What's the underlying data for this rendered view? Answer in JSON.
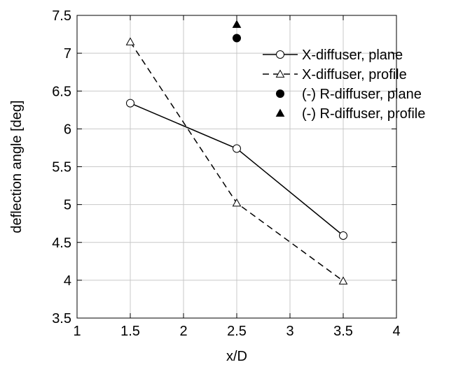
{
  "chart_data": {
    "type": "line",
    "title": "",
    "xlabel": "x/D",
    "ylabel": "deflection angle [deg]",
    "xlim": [
      1,
      4
    ],
    "ylim": [
      3.5,
      7.5
    ],
    "xticks": [
      "1",
      "1.5",
      "2",
      "2.5",
      "3",
      "3.5",
      "4"
    ],
    "yticks": [
      "3.5",
      "4",
      "4.5",
      "5",
      "5.5",
      "6",
      "6.5",
      "7",
      "7.5"
    ],
    "grid": true,
    "legend_position": "top-right",
    "series": [
      {
        "name": "X-diffuser,  plane",
        "line": "solid",
        "marker": "open-circle",
        "x": [
          1.5,
          2.5,
          3.5
        ],
        "y": [
          6.34,
          5.74,
          4.59
        ]
      },
      {
        "name": "X-diffuser,  profile",
        "line": "dashed",
        "marker": "open-triangle",
        "x": [
          1.5,
          2.5,
          3.5
        ],
        "y": [
          7.15,
          5.02,
          3.99
        ]
      },
      {
        "name": "(-) R-diffuser,  plane",
        "line": "none",
        "marker": "filled-circle",
        "x": [
          2.5
        ],
        "y": [
          7.2
        ]
      },
      {
        "name": "(-) R-diffuser,  profile",
        "line": "none",
        "marker": "filled-triangle",
        "x": [
          2.5
        ],
        "y": [
          7.38
        ]
      }
    ],
    "colors": {
      "line": "#000000",
      "grid": "#c8c8c8",
      "background": "#ffffff"
    }
  }
}
